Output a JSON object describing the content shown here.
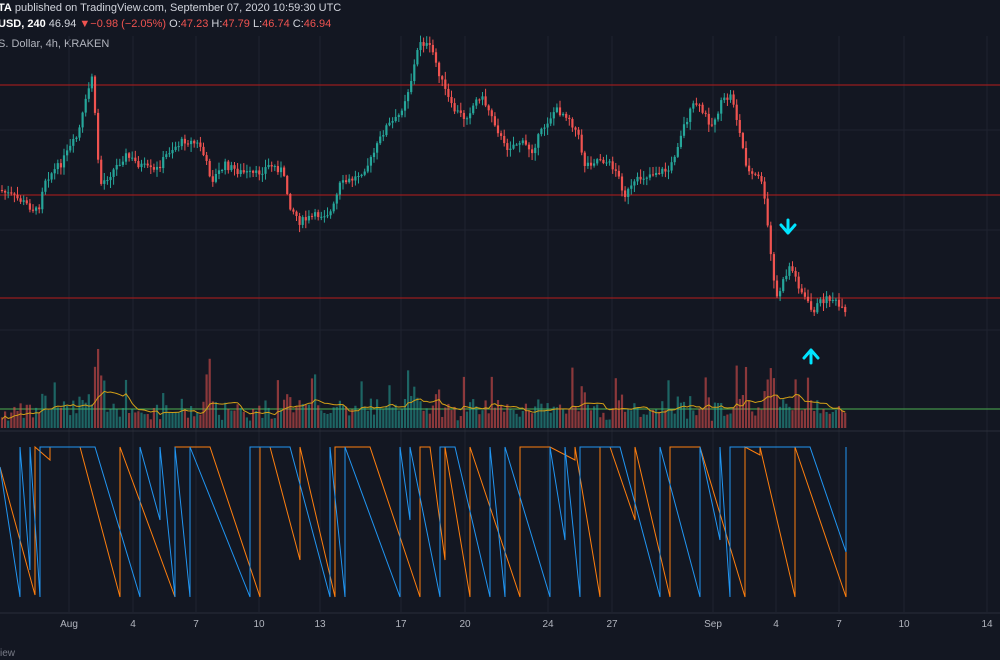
{
  "header": {
    "author_suffix": "TA",
    "published_text": " published on TradingView.com, September 07, 2020 10:59:30 UTC",
    "symbol_suffix": "USD",
    "interval": "240",
    "last_price": "46.94",
    "change": "−0.98 (−2.05%)",
    "open_label": "O:",
    "open": "47.23",
    "high_label": "H:",
    "high": "47.79",
    "low_label": "L:",
    "low": "46.74",
    "close_label": "C:",
    "close": "46.94",
    "description": "S. Dollar, 4h, KRAKEN"
  },
  "footer": {
    "text": "iew"
  },
  "colors": {
    "background": "#131722",
    "bull": "#26a69a",
    "bear": "#ef5350",
    "level_line": "#b71c1c",
    "volume_ma": "#d4a017",
    "volume_level": "#4caf50",
    "arrow": "#00e5ff",
    "osc_orange": "#ff7f0e",
    "osc_blue": "#2196f3"
  },
  "icons": [
    "arrow-down-icon",
    "arrow-up-icon"
  ],
  "chart_data": {
    "type": "candlestick",
    "x_tick_labels": [
      "Aug",
      "4",
      "7",
      "10",
      "13",
      "17",
      "20",
      "24",
      "27",
      "Sep",
      "4",
      "7",
      "10",
      "14"
    ],
    "grid": true,
    "annotations": [
      "down arrow above candles near Sep 4",
      "up arrow below candles near Sep 5"
    ]
  }
}
